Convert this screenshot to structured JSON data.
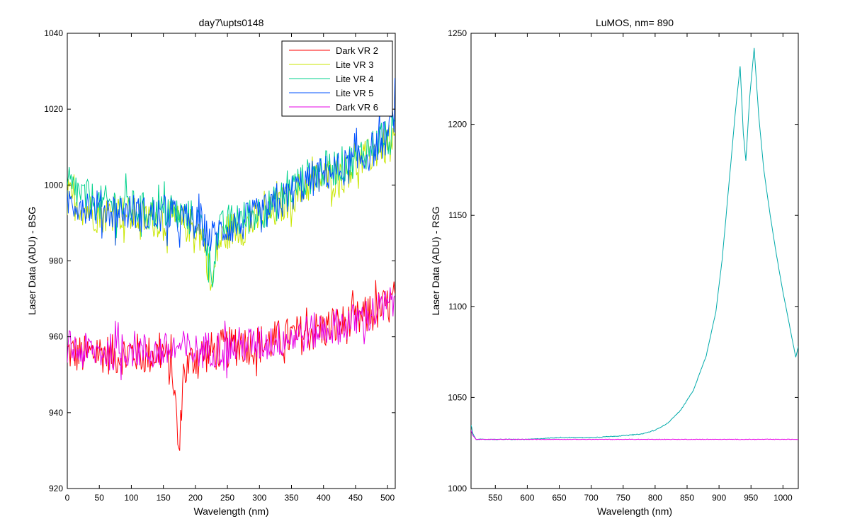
{
  "chart_data": [
    {
      "type": "line",
      "title": "day7\\upts0148",
      "xlabel": "Wavelength (nm)",
      "ylabel": "Laser Data (ADU) - BSG",
      "xlim": [
        0,
        512
      ],
      "ylim": [
        920,
        1040
      ],
      "xticks": [
        0,
        50,
        100,
        150,
        200,
        250,
        300,
        350,
        400,
        450,
        500
      ],
      "yticks": [
        920,
        940,
        960,
        980,
        1000,
        1020,
        1040
      ],
      "legend_position": "top-right",
      "series": [
        {
          "name": "Dark VR 2",
          "color": "#ff0000",
          "x": [
            0,
            25,
            50,
            75,
            100,
            125,
            150,
            165,
            172,
            175,
            180,
            200,
            225,
            250,
            275,
            300,
            325,
            350,
            375,
            400,
            425,
            450,
            475,
            500,
            512
          ],
          "y": [
            956,
            955,
            956,
            955,
            956,
            955,
            956,
            950,
            935,
            927,
            950,
            955,
            956,
            957,
            958,
            958,
            959,
            960,
            961,
            962,
            963,
            964,
            966,
            968,
            970
          ]
        },
        {
          "name": "Lite VR 3",
          "color": "#c8e600",
          "x": [
            0,
            25,
            50,
            75,
            100,
            125,
            150,
            175,
            200,
            215,
            225,
            235,
            250,
            275,
            300,
            325,
            350,
            375,
            400,
            425,
            450,
            475,
            490
          ],
          "y": [
            997,
            994,
            992,
            993,
            992,
            991,
            991,
            990,
            989,
            985,
            972,
            984,
            988,
            989,
            991,
            993,
            997,
            1000,
            1002,
            1003,
            1005,
            1008,
            1010
          ]
        },
        {
          "name": "Lite VR 4",
          "color": "#00d28c",
          "x": [
            0,
            25,
            50,
            75,
            100,
            125,
            150,
            175,
            200,
            215,
            225,
            235,
            250,
            275,
            300,
            325,
            350,
            375,
            400,
            425,
            450,
            475,
            490
          ],
          "y": [
            1000,
            997,
            995,
            995,
            994,
            993,
            993,
            992,
            991,
            988,
            976,
            987,
            990,
            991,
            993,
            995,
            999,
            1002,
            1004,
            1005,
            1007,
            1010,
            1012
          ]
        },
        {
          "name": "Lite VR 5",
          "color": "#0050ff",
          "x": [
            0,
            25,
            50,
            75,
            100,
            125,
            150,
            175,
            200,
            225,
            250,
            275,
            300,
            325,
            350,
            375,
            400,
            425,
            450,
            475,
            500,
            512
          ],
          "y": [
            996,
            995,
            994,
            993,
            993,
            992,
            992,
            991,
            990,
            986,
            989,
            990,
            992,
            994,
            998,
            1001,
            1003,
            1004,
            1006,
            1009,
            1013,
            1020
          ]
        },
        {
          "name": "Dark VR 6",
          "color": "#e600e6",
          "x": [
            0,
            25,
            50,
            75,
            100,
            125,
            150,
            175,
            200,
            225,
            250,
            275,
            300,
            325,
            350,
            375,
            400,
            425,
            450,
            475,
            500,
            512
          ],
          "y": [
            957,
            956,
            956,
            956,
            957,
            956,
            956,
            957,
            956,
            957,
            957,
            958,
            958,
            959,
            960,
            961,
            962,
            963,
            964,
            966,
            968,
            970
          ]
        }
      ]
    },
    {
      "type": "line",
      "title": "LuMOS, nm= 890",
      "xlabel": "Wavelength (nm)",
      "ylabel": "Laser Data (ADU) - RSG",
      "xlim": [
        512,
        1024
      ],
      "ylim": [
        1000,
        1250
      ],
      "xticks": [
        550,
        600,
        650,
        700,
        750,
        800,
        850,
        900,
        950,
        1000
      ],
      "yticks": [
        1000,
        1050,
        1100,
        1150,
        1200,
        1250
      ],
      "series": [
        {
          "color": "#00aaaa",
          "x": [
            512,
            515,
            520,
            550,
            600,
            650,
            700,
            750,
            780,
            800,
            820,
            840,
            860,
            880,
            895,
            905,
            915,
            925,
            933,
            938,
            942,
            948,
            955,
            962,
            970,
            980,
            990,
            1000,
            1010,
            1020,
            1024
          ],
          "y": [
            1035,
            1030,
            1027,
            1027,
            1027,
            1028,
            1028,
            1029,
            1030,
            1032,
            1036,
            1043,
            1054,
            1073,
            1097,
            1126,
            1165,
            1205,
            1232,
            1195,
            1180,
            1215,
            1242,
            1205,
            1175,
            1150,
            1128,
            1108,
            1090,
            1072,
            1078
          ]
        },
        {
          "color": "#e600e6",
          "x": [
            512,
            515,
            520,
            600,
            700,
            800,
            900,
            1000,
            1024
          ],
          "y": [
            1032,
            1029,
            1027,
            1027,
            1027,
            1027,
            1027,
            1027,
            1027
          ]
        }
      ]
    }
  ]
}
